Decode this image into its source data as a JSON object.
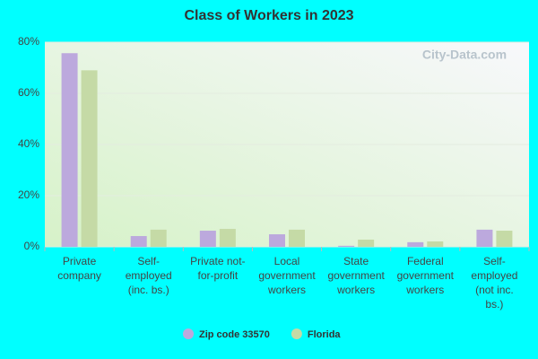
{
  "chart_data": {
    "type": "bar",
    "title": "Class of Workers in 2023",
    "watermark": "City-Data.com",
    "categories": [
      [
        "Private",
        "company"
      ],
      [
        "Self-",
        "employed",
        "(inc. bs.)"
      ],
      [
        "Private not-",
        "for-profit"
      ],
      [
        "Local",
        "government",
        "workers"
      ],
      [
        "State",
        "government",
        "workers"
      ],
      [
        "Federal",
        "government",
        "workers"
      ],
      [
        "Self-",
        "employed",
        "(not inc.",
        "bs.)"
      ]
    ],
    "series": [
      {
        "name": "Zip code 33570",
        "color": "#bca9dd",
        "values": [
          75.7,
          4.2,
          6.3,
          4.9,
          0.4,
          1.8,
          6.7
        ]
      },
      {
        "name": "Florida",
        "color": "#c5daa6",
        "values": [
          69,
          6.7,
          7.0,
          6.7,
          2.8,
          2.1,
          6.3
        ]
      }
    ],
    "ylim": [
      0,
      80
    ],
    "yticks": [
      {
        "value": 0,
        "label": "0%"
      },
      {
        "value": 20,
        "label": "20%"
      },
      {
        "value": 40,
        "label": "40%"
      },
      {
        "value": 60,
        "label": "60%"
      },
      {
        "value": 80,
        "label": "80%"
      }
    ],
    "grid": true
  }
}
